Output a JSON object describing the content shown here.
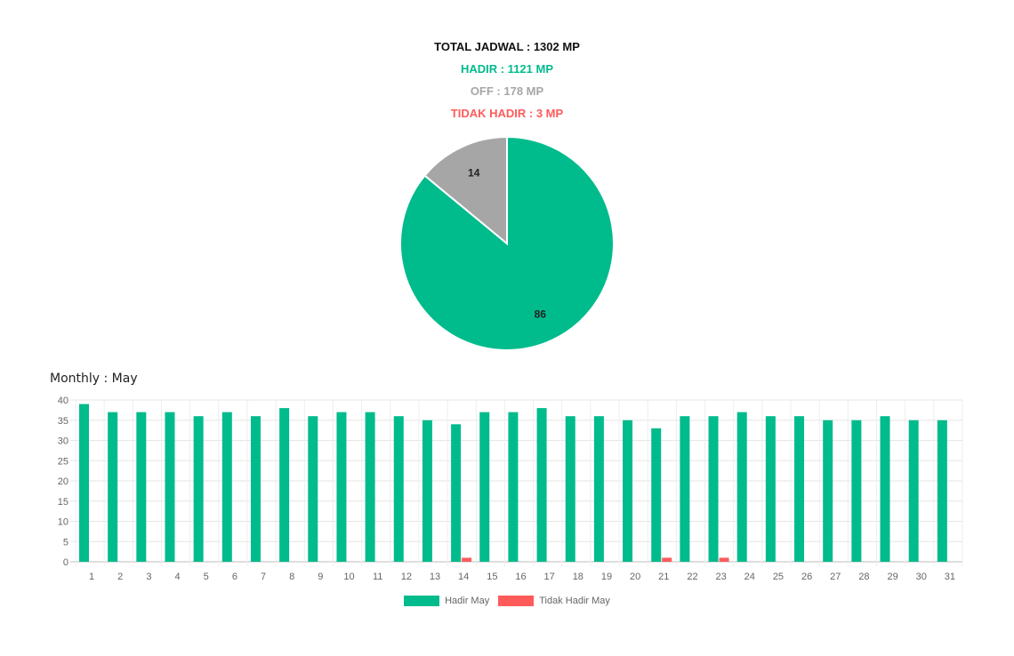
{
  "summary": {
    "total": "TOTAL JADWAL : 1302 MP",
    "hadir": "HADIR : 1121 MP",
    "off": "OFF : 178 MP",
    "tidak_hadir": "TIDAK HADIR : 3 MP"
  },
  "colors": {
    "hadir": "#00bb8c",
    "off": "#a6a6a6",
    "tidak_hadir": "#ff5b5b",
    "total": "#111111"
  },
  "chart_data": [
    {
      "type": "pie",
      "slices": [
        {
          "label": "86",
          "value": 86,
          "color": "#00bb8c"
        },
        {
          "label": "14",
          "value": 14,
          "color": "#a6a6a6"
        }
      ]
    },
    {
      "type": "bar",
      "title": "Monthly : May",
      "categories": [
        "1",
        "2",
        "3",
        "4",
        "5",
        "6",
        "7",
        "8",
        "9",
        "10",
        "11",
        "12",
        "13",
        "14",
        "15",
        "16",
        "17",
        "18",
        "19",
        "20",
        "21",
        "22",
        "23",
        "24",
        "25",
        "26",
        "27",
        "28",
        "29",
        "30",
        "31"
      ],
      "series": [
        {
          "name": "Hadir May",
          "color": "#00bb8c",
          "values": [
            39,
            37,
            37,
            37,
            36,
            37,
            36,
            38,
            36,
            37,
            37,
            36,
            35,
            34,
            37,
            37,
            38,
            36,
            36,
            35,
            33,
            36,
            36,
            37,
            36,
            36,
            35,
            35,
            36,
            35,
            35
          ]
        },
        {
          "name": "Tidak Hadir May",
          "color": "#ff5b5b",
          "values": [
            0,
            0,
            0,
            0,
            0,
            0,
            0,
            0,
            0,
            0,
            0,
            0,
            0,
            1,
            0,
            0,
            0,
            0,
            0,
            0,
            1,
            0,
            1,
            0,
            0,
            0,
            0,
            0,
            0,
            0,
            0
          ]
        }
      ],
      "ylim": [
        0,
        40
      ],
      "yticks": [
        0,
        5,
        10,
        15,
        20,
        25,
        30,
        35,
        40
      ],
      "grid": true,
      "legend": "bottom"
    }
  ]
}
